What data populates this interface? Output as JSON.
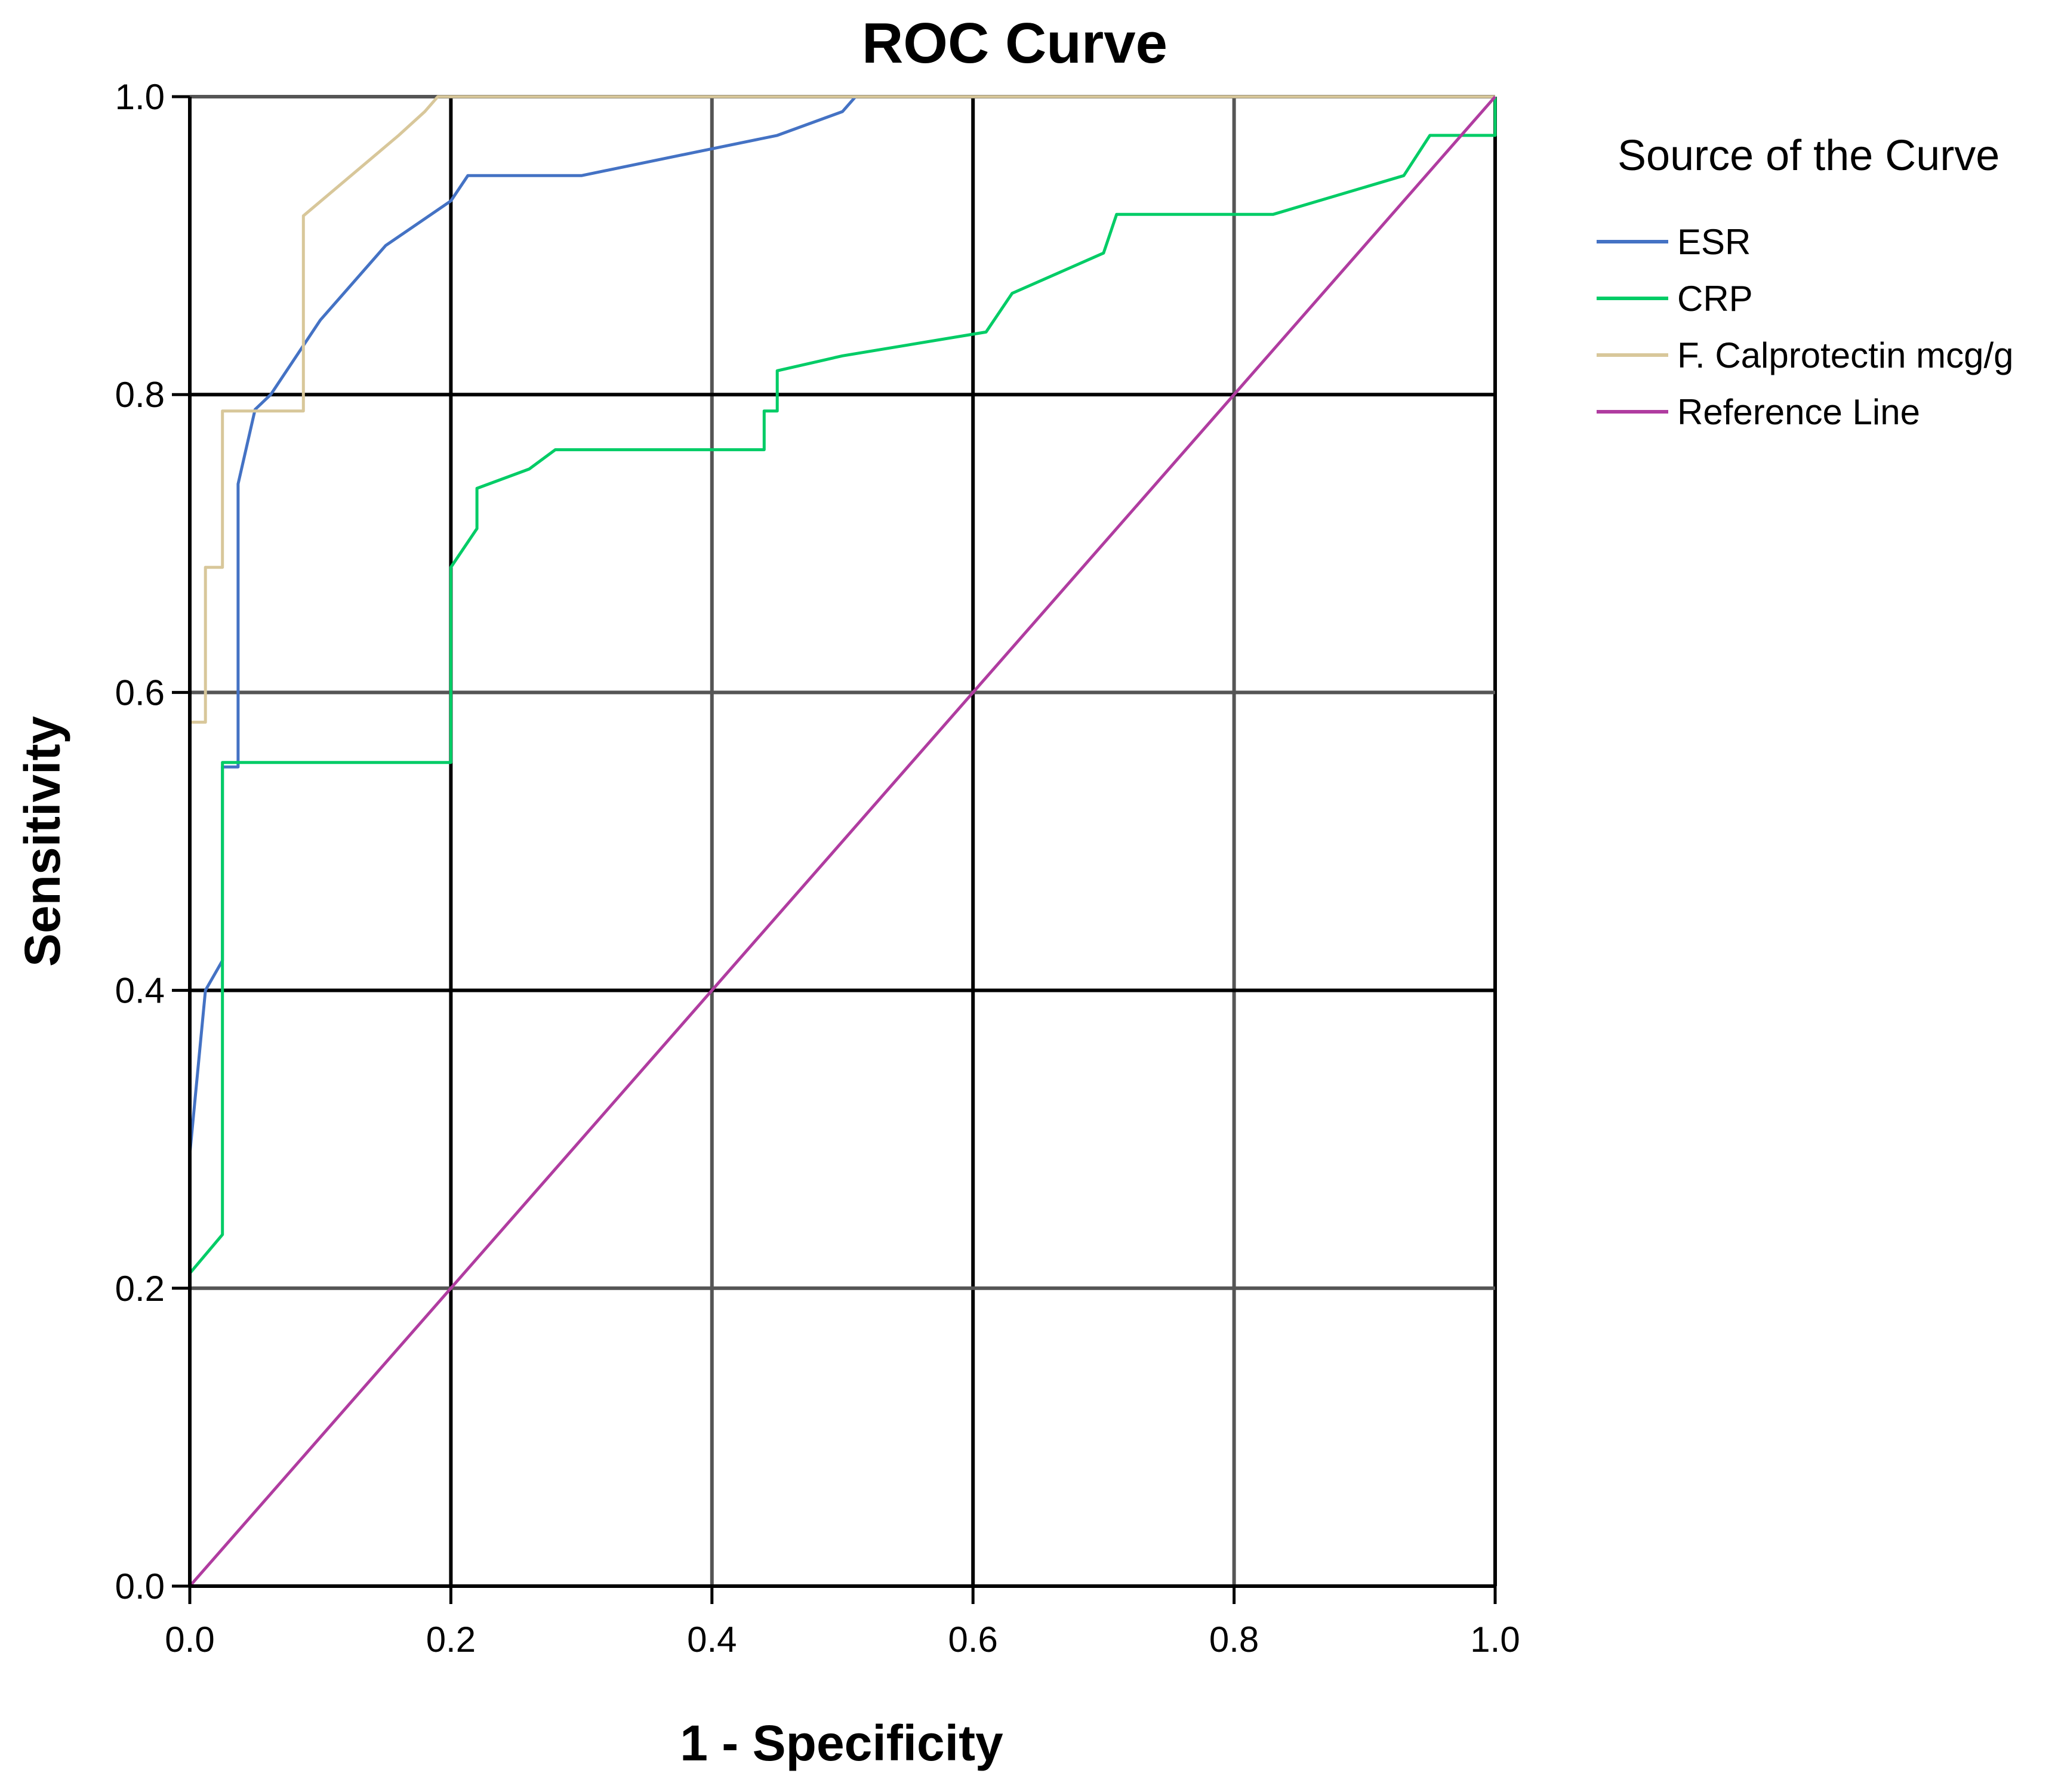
{
  "chart_data": {
    "type": "line",
    "title": "ROC Curve",
    "xlabel": "1 - Specificity",
    "ylabel": "Sensitivity",
    "xlim": [
      0,
      1
    ],
    "ylim": [
      0,
      1
    ],
    "xticks": [
      "0.0",
      "0.2",
      "0.4",
      "0.6",
      "0.8",
      "1.0"
    ],
    "yticks": [
      "0.0",
      "0.2",
      "0.4",
      "0.6",
      "0.8",
      "1.0"
    ],
    "grid": true,
    "legend": {
      "title": "Source of the Curve",
      "placement": "right"
    },
    "series": [
      {
        "name": "ESR",
        "color": "#4472c4",
        "x": [
          0,
          0,
          0.012,
          0.025,
          0.025,
          0.037,
          0.037,
          0.05,
          0.062,
          0.1,
          0.15,
          0.2,
          0.213,
          0.3,
          0.35,
          0.45,
          0.5,
          0.51,
          0.55,
          1.0
        ],
        "y": [
          0,
          0.29,
          0.4,
          0.42,
          0.55,
          0.55,
          0.74,
          0.79,
          0.8,
          0.85,
          0.9,
          0.93,
          0.947,
          0.947,
          0.956,
          0.974,
          0.99,
          1.0,
          1.0,
          1.0
        ]
      },
      {
        "name": "CRP",
        "color": "#00cc66",
        "x": [
          0,
          0,
          0.025,
          0.025,
          0.2,
          0.2,
          0.22,
          0.22,
          0.26,
          0.28,
          0.4,
          0.44,
          0.44,
          0.45,
          0.45,
          0.5,
          0.61,
          0.61,
          0.63,
          0.7,
          0.71,
          0.74,
          0.83,
          0.93,
          0.95,
          1.0,
          1.0
        ],
        "y": [
          0,
          0.21,
          0.236,
          0.553,
          0.553,
          0.684,
          0.71,
          0.737,
          0.75,
          0.763,
          0.763,
          0.763,
          0.789,
          0.789,
          0.816,
          0.826,
          0.842,
          0.842,
          0.868,
          0.895,
          0.921,
          0.921,
          0.921,
          0.947,
          0.974,
          0.974,
          1.0
        ]
      },
      {
        "name": "F. Calprotectin mcg/g",
        "color": "#d8c79a",
        "x": [
          0,
          0,
          0.012,
          0.012,
          0.025,
          0.025,
          0.087,
          0.087,
          0.16,
          0.18,
          0.19,
          0.5,
          1.0
        ],
        "y": [
          0,
          0.58,
          0.58,
          0.684,
          0.684,
          0.789,
          0.789,
          0.92,
          0.974,
          0.99,
          1.0,
          1.0,
          1.0
        ]
      },
      {
        "name": "Reference Line",
        "color": "#b03ca0",
        "x": [
          0,
          1
        ],
        "y": [
          0,
          1
        ]
      }
    ]
  }
}
